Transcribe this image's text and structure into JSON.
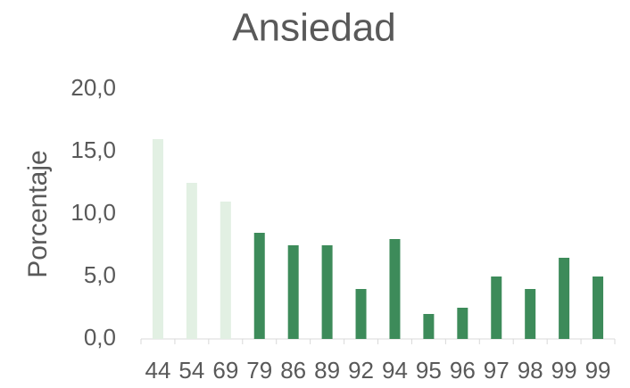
{
  "chart_data": {
    "type": "bar",
    "title": "Ansiedad",
    "y_label": "Porcentaje",
    "categories": [
      "44",
      "54",
      "69",
      "79",
      "86",
      "89",
      "92",
      "94",
      "95",
      "96",
      "97",
      "98",
      "99",
      "99"
    ],
    "values": [
      16,
      12.5,
      11,
      8.5,
      7.5,
      7.5,
      4,
      8,
      2,
      2.5,
      5,
      4,
      6.5,
      5
    ],
    "colors": [
      "#e2f0e3",
      "#e2f0e3",
      "#e2f0e3",
      "#3d8b5a",
      "#3d8b5a",
      "#3d8b5a",
      "#3d8b5a",
      "#3d8b5a",
      "#3d8b5a",
      "#3d8b5a",
      "#3d8b5a",
      "#3d8b5a",
      "#3d8b5a",
      "#3d8b5a"
    ],
    "ylim": [
      0,
      20
    ],
    "yticks": [
      {
        "value": 0,
        "label": "0,0"
      },
      {
        "value": 5,
        "label": "5,0"
      },
      {
        "value": 10,
        "label": "10,0"
      },
      {
        "value": 15,
        "label": "15,0"
      },
      {
        "value": 20,
        "label": "20,0"
      }
    ],
    "grid": false
  }
}
